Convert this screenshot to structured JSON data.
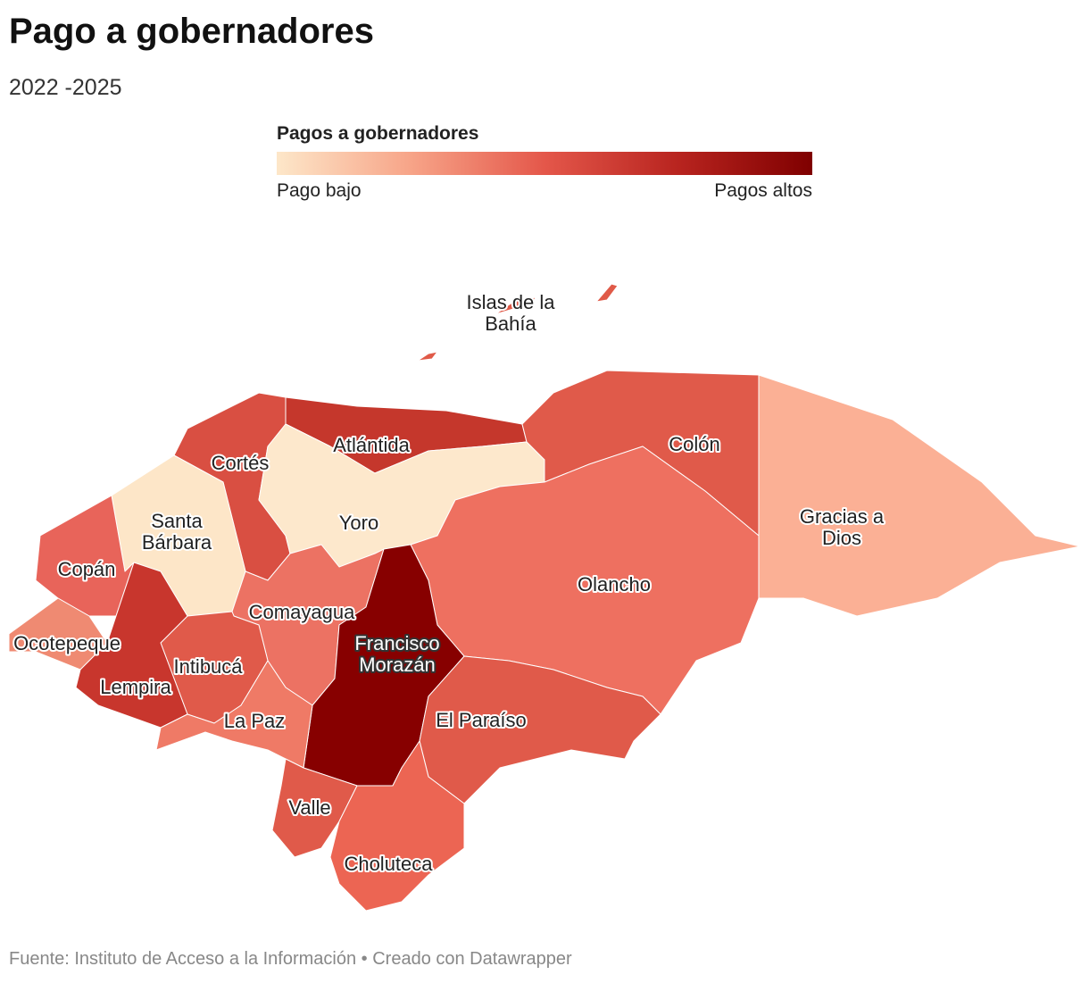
{
  "title": "Pago a gobernadores",
  "subtitle": "2022 -2025",
  "legend": {
    "title": "Pagos a gobernadores",
    "low_label": "Pago bajo",
    "high_label": "Pagos altos",
    "colors": [
      "#fde7c9",
      "#f7a488",
      "#e4574a",
      "#b8241f",
      "#7f0000"
    ]
  },
  "regions": [
    {
      "name": "Islas de la Bahía",
      "label_lines": [
        "Islas de la",
        "Bahía"
      ],
      "color": "#e05a48"
    },
    {
      "name": "Atlántida",
      "label_lines": [
        "Atlántida"
      ],
      "color": "#c5372c"
    },
    {
      "name": "Colón",
      "label_lines": [
        "Colón"
      ],
      "color": "#e05a4a"
    },
    {
      "name": "Cortés",
      "label_lines": [
        "Cortés"
      ],
      "color": "#d94f42"
    },
    {
      "name": "Yoro",
      "label_lines": [
        "Yoro"
      ],
      "color": "#fde8cc"
    },
    {
      "name": "Santa Bárbara",
      "label_lines": [
        "Santa",
        "Bárbara"
      ],
      "color": "#fde6c8"
    },
    {
      "name": "Gracias a Dios",
      "label_lines": [
        "Gracias a",
        "Dios"
      ],
      "color": "#fbb095"
    },
    {
      "name": "Copán",
      "label_lines": [
        "Copán"
      ],
      "color": "#e8645a"
    },
    {
      "name": "Olancho",
      "label_lines": [
        "Olancho"
      ],
      "color": "#ee7060"
    },
    {
      "name": "Comayagua",
      "label_lines": [
        "Comayagua"
      ],
      "color": "#ec7263"
    },
    {
      "name": "Ocotepeque",
      "label_lines": [
        "Ocotepeque"
      ],
      "color": "#ef8a72"
    },
    {
      "name": "Francisco Morazán",
      "label_lines": [
        "Francisco",
        "Morazán"
      ],
      "color": "#870000"
    },
    {
      "name": "Intibucá",
      "label_lines": [
        "Intibucá"
      ],
      "color": "#e05a4a"
    },
    {
      "name": "Lempira",
      "label_lines": [
        "Lempira"
      ],
      "color": "#c8362d"
    },
    {
      "name": "La Paz",
      "label_lines": [
        "La Paz"
      ],
      "color": "#ef7a66"
    },
    {
      "name": "El Paraíso",
      "label_lines": [
        "El Paraíso"
      ],
      "color": "#e05a4a"
    },
    {
      "name": "Valle",
      "label_lines": [
        "Valle"
      ],
      "color": "#e05a4a"
    },
    {
      "name": "Choluteca",
      "label_lines": [
        "Choluteca"
      ],
      "color": "#ec6553"
    }
  ],
  "footer": {
    "source": "Fuente: Instituto de Acceso a la Información • Creado con Datawrapper"
  }
}
